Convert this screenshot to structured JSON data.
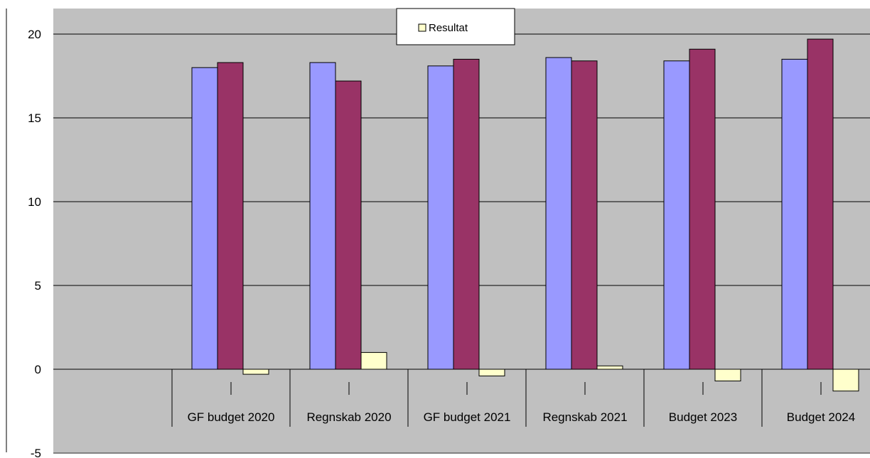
{
  "chart_data": {
    "type": "bar",
    "title": "",
    "xlabel": "",
    "ylabel": "",
    "ylim": [
      -5,
      20
    ],
    "yticks": [
      -5,
      0,
      5,
      10,
      15,
      20
    ],
    "grid": true,
    "categories": [
      "",
      "GF budget 2020",
      "Regnskab 2020",
      "GF budget 2021",
      "Regnskab 2021",
      "Budget 2023",
      "Budget 2024"
    ],
    "series": [
      {
        "name": "",
        "color": "#9999ff",
        "values": [
          null,
          18.0,
          18.3,
          18.1,
          18.6,
          18.4,
          18.5
        ]
      },
      {
        "name": "",
        "color": "#993366",
        "values": [
          null,
          18.3,
          17.2,
          18.5,
          18.4,
          19.1,
          19.7
        ]
      },
      {
        "name": "Resultat",
        "color": "#ffffcc",
        "values": [
          null,
          -0.3,
          1.0,
          -0.4,
          0.2,
          -0.7,
          -1.3
        ]
      }
    ],
    "legend": {
      "position": "top",
      "entries": [
        "Resultat"
      ]
    },
    "colors": {
      "plot_background": "#c0c0c0",
      "gridline": "#000000"
    }
  }
}
